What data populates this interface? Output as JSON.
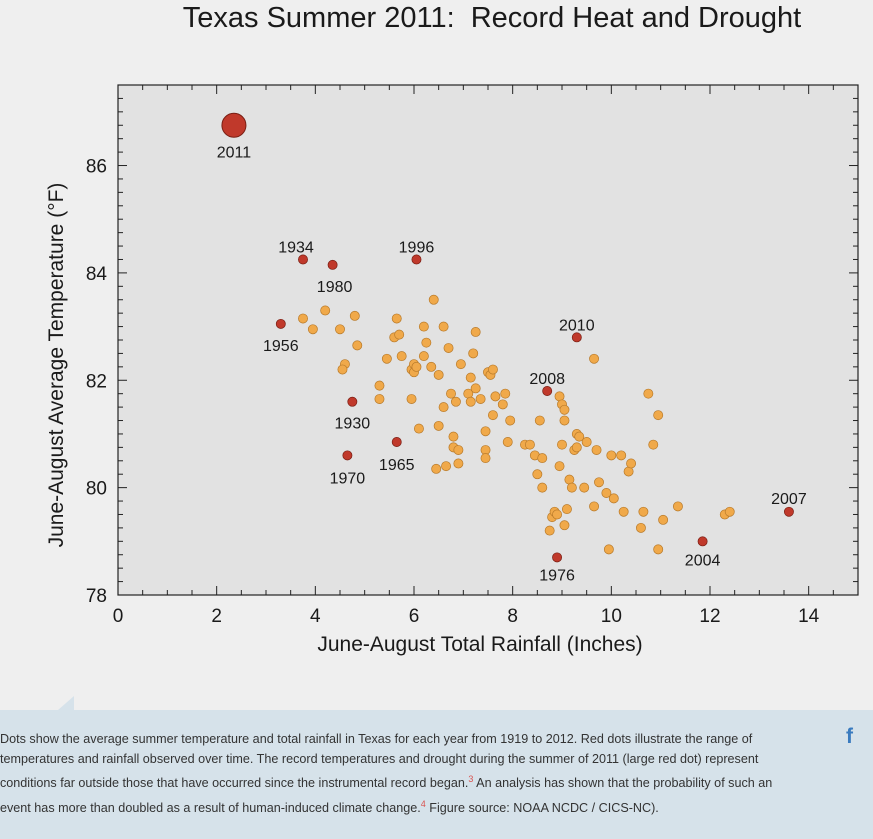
{
  "chart_data": {
    "type": "scatter",
    "title": "Texas Summer 2011:  Record Heat and Drought",
    "xlabel": "June-August Total Rainfall (Inches)",
    "ylabel": "June-August Average Temperature (°F)",
    "xlim": [
      0,
      15
    ],
    "ylim": [
      78,
      87.5
    ],
    "xticks": [
      0,
      2,
      4,
      6,
      8,
      10,
      12,
      14
    ],
    "yticks": [
      78,
      80,
      82,
      84,
      86
    ],
    "grid": false,
    "highlight_color": "#c0392b",
    "point_color": "#f0a94a",
    "highlighted_points": [
      {
        "year": "2011",
        "x": 2.35,
        "y": 86.75,
        "big": true
      },
      {
        "year": "1934",
        "x": 3.75,
        "y": 84.25
      },
      {
        "year": "1980",
        "x": 4.35,
        "y": 84.15
      },
      {
        "year": "1996",
        "x": 6.05,
        "y": 84.25
      },
      {
        "year": "1956",
        "x": 3.3,
        "y": 83.05
      },
      {
        "year": "2010",
        "x": 9.3,
        "y": 82.8
      },
      {
        "year": "2008",
        "x": 8.7,
        "y": 81.8
      },
      {
        "year": "1930",
        "x": 4.75,
        "y": 81.6
      },
      {
        "year": "1965",
        "x": 5.65,
        "y": 80.85
      },
      {
        "year": "1970",
        "x": 4.65,
        "y": 80.6
      },
      {
        "year": "2007",
        "x": 13.6,
        "y": 79.55
      },
      {
        "year": "2004",
        "x": 11.85,
        "y": 79.0
      },
      {
        "year": "1976",
        "x": 8.9,
        "y": 78.7
      }
    ],
    "points": [
      [
        3.75,
        83.15
      ],
      [
        4.2,
        83.3
      ],
      [
        3.95,
        82.95
      ],
      [
        4.5,
        82.95
      ],
      [
        4.8,
        83.2
      ],
      [
        4.85,
        82.65
      ],
      [
        4.6,
        82.3
      ],
      [
        4.55,
        82.2
      ],
      [
        5.3,
        81.9
      ],
      [
        5.3,
        81.65
      ],
      [
        5.45,
        82.4
      ],
      [
        5.6,
        82.8
      ],
      [
        5.65,
        83.15
      ],
      [
        5.7,
        82.85
      ],
      [
        5.75,
        82.45
      ],
      [
        5.95,
        82.2
      ],
      [
        6.0,
        82.15
      ],
      [
        6.0,
        82.3
      ],
      [
        6.05,
        82.25
      ],
      [
        5.95,
        81.65
      ],
      [
        6.1,
        81.1
      ],
      [
        6.2,
        82.45
      ],
      [
        6.25,
        82.7
      ],
      [
        6.2,
        83.0
      ],
      [
        6.35,
        82.25
      ],
      [
        6.4,
        83.5
      ],
      [
        6.5,
        82.1
      ],
      [
        6.5,
        81.15
      ],
      [
        6.6,
        83.0
      ],
      [
        6.6,
        81.5
      ],
      [
        6.7,
        82.6
      ],
      [
        6.75,
        81.75
      ],
      [
        6.85,
        81.6
      ],
      [
        6.8,
        80.95
      ],
      [
        6.8,
        80.75
      ],
      [
        6.9,
        80.7
      ],
      [
        6.9,
        80.45
      ],
      [
        6.45,
        80.35
      ],
      [
        6.65,
        80.4
      ],
      [
        6.95,
        82.3
      ],
      [
        7.1,
        81.75
      ],
      [
        7.15,
        81.6
      ],
      [
        7.15,
        82.05
      ],
      [
        7.2,
        82.5
      ],
      [
        7.25,
        82.9
      ],
      [
        7.25,
        81.85
      ],
      [
        7.35,
        81.65
      ],
      [
        7.45,
        80.7
      ],
      [
        7.45,
        80.55
      ],
      [
        7.45,
        81.05
      ],
      [
        7.5,
        82.15
      ],
      [
        7.55,
        82.1
      ],
      [
        7.6,
        82.2
      ],
      [
        7.6,
        81.35
      ],
      [
        7.65,
        81.7
      ],
      [
        7.8,
        81.55
      ],
      [
        7.85,
        81.75
      ],
      [
        7.9,
        80.85
      ],
      [
        7.95,
        81.25
      ],
      [
        8.25,
        80.8
      ],
      [
        8.35,
        80.8
      ],
      [
        8.45,
        80.6
      ],
      [
        8.5,
        80.25
      ],
      [
        8.55,
        81.25
      ],
      [
        8.6,
        80.55
      ],
      [
        8.6,
        80.0
      ],
      [
        8.75,
        79.2
      ],
      [
        8.8,
        79.45
      ],
      [
        8.85,
        79.55
      ],
      [
        8.9,
        79.5
      ],
      [
        8.95,
        80.4
      ],
      [
        8.95,
        81.7
      ],
      [
        9.0,
        81.55
      ],
      [
        9.05,
        81.45
      ],
      [
        9.05,
        81.25
      ],
      [
        9.0,
        80.8
      ],
      [
        9.05,
        79.3
      ],
      [
        9.1,
        79.6
      ],
      [
        9.15,
        80.15
      ],
      [
        9.2,
        80.0
      ],
      [
        9.25,
        80.7
      ],
      [
        9.3,
        81.0
      ],
      [
        9.3,
        80.75
      ],
      [
        9.35,
        80.95
      ],
      [
        9.45,
        80.0
      ],
      [
        9.5,
        80.85
      ],
      [
        9.65,
        82.4
      ],
      [
        9.7,
        80.7
      ],
      [
        9.75,
        80.1
      ],
      [
        9.65,
        79.65
      ],
      [
        9.9,
        79.9
      ],
      [
        9.95,
        78.85
      ],
      [
        10.0,
        80.6
      ],
      [
        10.05,
        79.8
      ],
      [
        10.2,
        80.6
      ],
      [
        10.25,
        79.55
      ],
      [
        10.35,
        80.3
      ],
      [
        10.4,
        80.45
      ],
      [
        10.6,
        79.25
      ],
      [
        10.65,
        79.55
      ],
      [
        10.75,
        81.75
      ],
      [
        10.85,
        80.8
      ],
      [
        10.95,
        81.35
      ],
      [
        10.95,
        78.85
      ],
      [
        11.05,
        79.4
      ],
      [
        11.35,
        79.65
      ],
      [
        12.3,
        79.5
      ],
      [
        12.4,
        79.55
      ]
    ]
  },
  "caption": {
    "text_1": "Dots show the average summer temperature and total rainfall in Texas for each year from 1919 to 2012. Red dots illustrate the range of temperatures and rainfall observed over time. The record temperatures and drought during the summer of 2011 (large red dot) represent conditions far outside those that have occurred since the instrumental record began.",
    "sup_1": "3",
    "text_2": "  An analysis has shown that the probability of such an event has more than doubled as a result of human-induced climate change.",
    "sup_2": "4",
    "text_3": "  Figure source: NOAA NCDC / CICS-NC)."
  },
  "share": {
    "icon": "facebook-icon",
    "glyph": "f"
  }
}
